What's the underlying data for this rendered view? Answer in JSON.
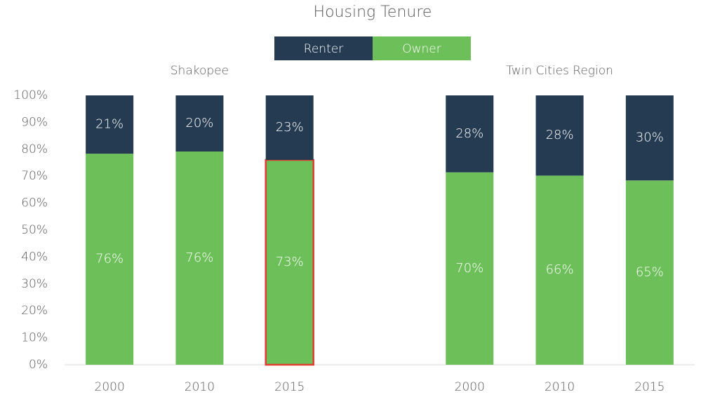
{
  "chart_data": {
    "type": "bar",
    "stacking": "percent",
    "title": "Housing Tenure",
    "groups": [
      {
        "name": "Shakopee",
        "categories": [
          "2000",
          "2010",
          "2015"
        ]
      },
      {
        "name": "Twin Cities Region",
        "categories": [
          "2000",
          "2010",
          "2015"
        ]
      }
    ],
    "series": [
      {
        "name": "Owner",
        "color": "#6dbf59",
        "values": [
          76,
          76,
          73,
          70,
          66,
          65
        ],
        "value_labels": [
          "76%",
          "76%",
          "73%",
          "70%",
          "66%",
          "65%"
        ]
      },
      {
        "name": "Renter",
        "color": "#253b52",
        "values": [
          21,
          20,
          23,
          28,
          28,
          30
        ],
        "value_labels": [
          "21%",
          "20%",
          "23%",
          "28%",
          "28%",
          "30%"
        ]
      }
    ],
    "highlight": {
      "series": "Owner",
      "group": "Shakopee",
      "category": "2015",
      "color": "#e03c31"
    },
    "ylim": [
      0,
      100
    ],
    "yticks": [
      {
        "value": 0,
        "label": "0%"
      },
      {
        "value": 10,
        "label": "10%"
      },
      {
        "value": 20,
        "label": "20%"
      },
      {
        "value": 30,
        "label": "30%"
      },
      {
        "value": 40,
        "label": "40%"
      },
      {
        "value": 50,
        "label": "50%"
      },
      {
        "value": 60,
        "label": "60%"
      },
      {
        "value": 70,
        "label": "70%"
      },
      {
        "value": 80,
        "label": "80%"
      },
      {
        "value": 90,
        "label": "90%"
      },
      {
        "value": 100,
        "label": "100%"
      }
    ],
    "legend": "top",
    "legend_order": [
      "Renter",
      "Owner"
    ],
    "grid": false
  }
}
